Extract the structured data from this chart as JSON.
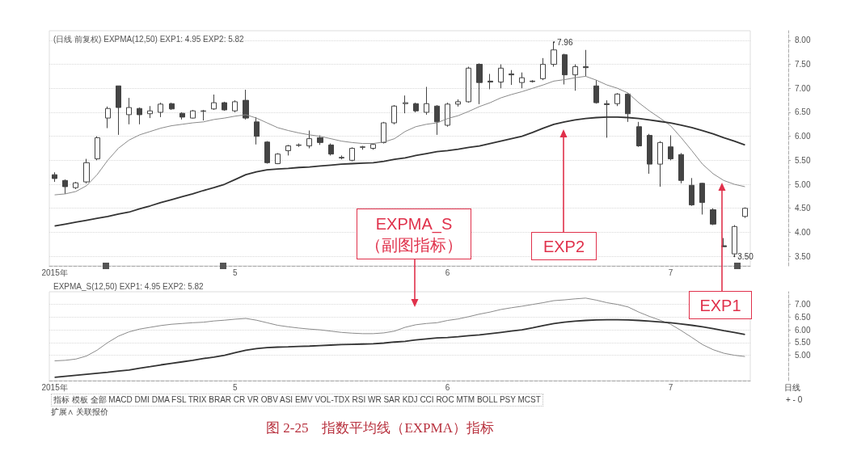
{
  "chart_data": [
    {
      "type": "candlestick",
      "title": "(日线 前复权) EXPMA(12,50) EXP1: 4.95 EXP2: 5.82",
      "categories": [
        "2015年",
        null,
        null,
        null,
        null,
        null,
        null,
        null,
        null,
        null,
        null,
        null,
        null,
        null,
        null,
        null,
        null,
        "5",
        null,
        null,
        null,
        null,
        null,
        null,
        null,
        null,
        null,
        null,
        null,
        null,
        null,
        null,
        null,
        null,
        null,
        null,
        null,
        "6",
        null,
        null,
        null,
        null,
        null,
        null,
        null,
        null,
        null,
        null,
        null,
        null,
        null,
        null,
        null,
        null,
        null,
        null,
        null,
        null,
        "7",
        null,
        null,
        null,
        null,
        null,
        null,
        null
      ],
      "ylim": [
        3.3,
        8.2
      ],
      "yticks": [
        {
          "value": 3.5,
          "label": "3.50"
        },
        {
          "value": 4,
          "label": "4.00"
        },
        {
          "value": 4.5,
          "label": "4.50"
        },
        {
          "value": 5,
          "label": "5.00"
        },
        {
          "value": 5.5,
          "label": "5.50"
        },
        {
          "value": 6,
          "label": "6.00"
        },
        {
          "value": 6.5,
          "label": "6.50"
        },
        {
          "value": 7,
          "label": "7.00"
        },
        {
          "value": 7.5,
          "label": "7.50"
        },
        {
          "value": 8,
          "label": "8.00"
        }
      ],
      "grid": "y",
      "legend": false,
      "series": [
        {
          "color": "#444444",
          "ohlc": [
            [
              5.2,
              5.25,
              5.05,
              5.12
            ],
            [
              5.08,
              5.1,
              4.8,
              4.95
            ],
            [
              4.93,
              5.05,
              4.9,
              5.03
            ],
            [
              5.05,
              5.53,
              5.02,
              5.45
            ],
            [
              5.53,
              6.0,
              5.5,
              5.97
            ],
            [
              6.38,
              6.62,
              6.17,
              6.58
            ],
            [
              7.05,
              7.05,
              6.03,
              6.6
            ],
            [
              6.45,
              6.8,
              6.25,
              6.6
            ],
            [
              6.58,
              6.6,
              6.25,
              6.45
            ],
            [
              6.47,
              6.63,
              6.38,
              6.53
            ],
            [
              6.5,
              6.7,
              6.4,
              6.67
            ],
            [
              6.68,
              6.7,
              6.55,
              6.57
            ],
            [
              6.48,
              6.5,
              6.35,
              6.4
            ],
            [
              6.38,
              6.55,
              6.37,
              6.53
            ],
            [
              6.52,
              6.55,
              6.33,
              6.53
            ],
            [
              6.57,
              6.87,
              6.55,
              6.7
            ],
            [
              6.7,
              6.72,
              6.53,
              6.55
            ],
            [
              6.53,
              6.75,
              6.5,
              6.72
            ],
            [
              6.75,
              6.97,
              6.35,
              6.38
            ],
            [
              6.3,
              6.4,
              5.83,
              6.0
            ],
            [
              5.88,
              5.9,
              5.43,
              5.45
            ],
            [
              5.43,
              5.65,
              5.42,
              5.63
            ],
            [
              5.7,
              5.82,
              5.6,
              5.8
            ],
            [
              5.81,
              5.85,
              5.78,
              5.82
            ],
            [
              5.8,
              6.12,
              5.75,
              5.95
            ],
            [
              5.97,
              6.02,
              5.82,
              5.87
            ],
            [
              5.82,
              5.85,
              5.6,
              5.63
            ],
            [
              5.56,
              5.6,
              5.52,
              5.55
            ],
            [
              5.5,
              5.77,
              5.48,
              5.75
            ],
            [
              5.77,
              5.8,
              5.72,
              5.78
            ],
            [
              5.75,
              5.85,
              5.72,
              5.83
            ],
            [
              5.87,
              6.3,
              5.85,
              6.28
            ],
            [
              6.28,
              6.65,
              6.25,
              6.63
            ],
            [
              6.68,
              6.85,
              6.48,
              6.7
            ],
            [
              6.68,
              6.7,
              6.5,
              6.53
            ],
            [
              6.5,
              7.03,
              6.45,
              6.68
            ],
            [
              6.63,
              6.65,
              6.03,
              6.3
            ],
            [
              6.23,
              6.7,
              6.2,
              6.67
            ],
            [
              6.67,
              6.77,
              6.62,
              6.72
            ],
            [
              6.72,
              7.45,
              6.7,
              7.42
            ],
            [
              7.5,
              7.52,
              6.67,
              7.12
            ],
            [
              7.15,
              7.3,
              6.98,
              7.13
            ],
            [
              7.13,
              7.5,
              7.0,
              7.42
            ],
            [
              7.3,
              7.38,
              7.07,
              7.28
            ],
            [
              7.12,
              7.33,
              7.0,
              7.22
            ],
            [
              7.15,
              7.17,
              7.12,
              7.14
            ],
            [
              7.2,
              7.63,
              7.17,
              7.5
            ],
            [
              7.5,
              7.96,
              7.45,
              7.8
            ],
            [
              7.7,
              7.72,
              7.08,
              7.28
            ],
            [
              7.28,
              7.5,
              6.95,
              7.45
            ],
            [
              7.45,
              7.8,
              7.25,
              7.43
            ],
            [
              7.05,
              7.17,
              6.68,
              6.7
            ],
            [
              6.68,
              6.75,
              5.97,
              6.66
            ],
            [
              6.68,
              6.9,
              6.63,
              6.88
            ],
            [
              6.88,
              6.9,
              6.3,
              6.47
            ],
            [
              6.2,
              6.3,
              5.78,
              5.8
            ],
            [
              6.02,
              6.05,
              5.22,
              5.42
            ],
            [
              5.42,
              5.9,
              4.95,
              5.87
            ],
            [
              5.78,
              6.02,
              5.5,
              5.53
            ],
            [
              5.62,
              5.65,
              5.02,
              5.08
            ],
            [
              4.98,
              5.13,
              4.55,
              4.57
            ],
            [
              5.02,
              5.03,
              4.37,
              4.62
            ],
            [
              4.47,
              4.5,
              4.15,
              4.17
            ],
            [
              3.72,
              3.88,
              3.7,
              3.7
            ],
            [
              3.55,
              4.15,
              3.5,
              4.12
            ],
            [
              4.33,
              4.52,
              4.3,
              4.5
            ]
          ]
        },
        {
          "type": "line",
          "name": "EXP1",
          "color": "#8a8a8a",
          "values": [
            4.78,
            4.8,
            4.85,
            4.97,
            5.2,
            5.5,
            5.75,
            5.92,
            6.03,
            6.1,
            6.17,
            6.22,
            6.25,
            6.28,
            6.3,
            6.35,
            6.38,
            6.42,
            6.45,
            6.38,
            6.28,
            6.18,
            6.12,
            6.07,
            6.03,
            6.0,
            5.95,
            5.9,
            5.87,
            5.85,
            5.85,
            5.88,
            5.95,
            6.1,
            6.2,
            6.25,
            6.28,
            6.37,
            6.43,
            6.52,
            6.62,
            6.7,
            6.8,
            6.87,
            6.93,
            7.0,
            7.07,
            7.15,
            7.18,
            7.22,
            7.25,
            7.17,
            7.07,
            7.0,
            6.9,
            6.7,
            6.53,
            6.38,
            6.22,
            5.97,
            5.7,
            5.42,
            5.22,
            5.08,
            5.0,
            4.95
          ]
        },
        {
          "type": "line",
          "name": "EXP2",
          "color": "#333333",
          "values": [
            4.13,
            4.17,
            4.21,
            4.25,
            4.29,
            4.33,
            4.38,
            4.42,
            4.49,
            4.55,
            4.62,
            4.68,
            4.74,
            4.8,
            4.87,
            4.93,
            5.0,
            5.1,
            5.2,
            5.26,
            5.3,
            5.32,
            5.33,
            5.35,
            5.36,
            5.38,
            5.4,
            5.42,
            5.43,
            5.44,
            5.45,
            5.48,
            5.52,
            5.55,
            5.6,
            5.64,
            5.68,
            5.7,
            5.73,
            5.77,
            5.8,
            5.85,
            5.9,
            5.95,
            6.0,
            6.08,
            6.17,
            6.25,
            6.3,
            6.34,
            6.37,
            6.39,
            6.4,
            6.4,
            6.39,
            6.37,
            6.34,
            6.31,
            6.28,
            6.23,
            6.18,
            6.12,
            6.05,
            5.97,
            5.9,
            5.82
          ]
        }
      ],
      "annotations": [
        "7.96",
        "3.50"
      ]
    },
    {
      "type": "line",
      "title": "EXPMA_S(12,50) EXP1: 4.95 EXP2: 5.82",
      "categories": [
        "2015年",
        null,
        null,
        null,
        null,
        null,
        null,
        null,
        null,
        null,
        null,
        null,
        null,
        null,
        null,
        null,
        null,
        "5",
        null,
        null,
        null,
        null,
        null,
        null,
        null,
        null,
        null,
        null,
        null,
        null,
        null,
        null,
        null,
        null,
        null,
        null,
        null,
        "6",
        null,
        null,
        null,
        null,
        null,
        null,
        null,
        null,
        null,
        null,
        null,
        null,
        null,
        null,
        null,
        null,
        null,
        null,
        null,
        null,
        "7",
        null,
        null,
        null,
        null,
        null,
        null,
        null
      ],
      "ylim": [
        4.0,
        7.5
      ],
      "yticks": [
        {
          "value": 5,
          "label": "5.00"
        },
        {
          "value": 5.5,
          "label": "5.50"
        },
        {
          "value": 6,
          "label": "6.00"
        },
        {
          "value": 6.5,
          "label": "6.50"
        },
        {
          "value": 7,
          "label": "7.00"
        }
      ],
      "grid": "y",
      "legend": false,
      "series": [
        {
          "color": "#8a8a8a",
          "values": [
            4.78,
            4.8,
            4.85,
            4.97,
            5.2,
            5.5,
            5.75,
            5.92,
            6.03,
            6.1,
            6.17,
            6.22,
            6.25,
            6.28,
            6.3,
            6.35,
            6.38,
            6.42,
            6.45,
            6.38,
            6.28,
            6.18,
            6.12,
            6.07,
            6.03,
            6.0,
            5.95,
            5.9,
            5.87,
            5.85,
            5.85,
            5.88,
            5.95,
            6.1,
            6.2,
            6.25,
            6.28,
            6.37,
            6.43,
            6.52,
            6.62,
            6.7,
            6.8,
            6.87,
            6.93,
            7.0,
            7.07,
            7.15,
            7.18,
            7.22,
            7.25,
            7.17,
            7.07,
            7.0,
            6.9,
            6.7,
            6.53,
            6.38,
            6.22,
            5.97,
            5.7,
            5.42,
            5.22,
            5.08,
            5.0,
            4.95
          ]
        },
        {
          "color": "#333333",
          "values": [
            4.13,
            4.17,
            4.21,
            4.25,
            4.29,
            4.33,
            4.38,
            4.42,
            4.49,
            4.55,
            4.62,
            4.68,
            4.74,
            4.8,
            4.87,
            4.93,
            5.0,
            5.1,
            5.2,
            5.26,
            5.3,
            5.32,
            5.33,
            5.35,
            5.36,
            5.38,
            5.4,
            5.42,
            5.43,
            5.44,
            5.45,
            5.48,
            5.52,
            5.55,
            5.6,
            5.64,
            5.68,
            5.7,
            5.73,
            5.77,
            5.8,
            5.85,
            5.9,
            5.95,
            6.0,
            6.08,
            6.17,
            6.25,
            6.3,
            6.34,
            6.37,
            6.39,
            6.4,
            6.4,
            6.39,
            6.37,
            6.34,
            6.31,
            6.28,
            6.23,
            6.18,
            6.12,
            6.05,
            5.97,
            5.9,
            5.82
          ]
        }
      ],
      "annotations": [
        "EXPMA_S\n（副图指标）",
        "指标 模板 全部 MACD DMI DMA FSL TRIX BRAR CR VR OBV ASI EMV VOL-TDX RSI WR SAR KDJ CCI ROC MTM BOLL PSY MCST",
        "扩展∧ 关联报价",
        "日线",
        "+ - 0",
        "图 2-25　指数平均线（EXPMA）指标"
      ]
    }
  ]
}
